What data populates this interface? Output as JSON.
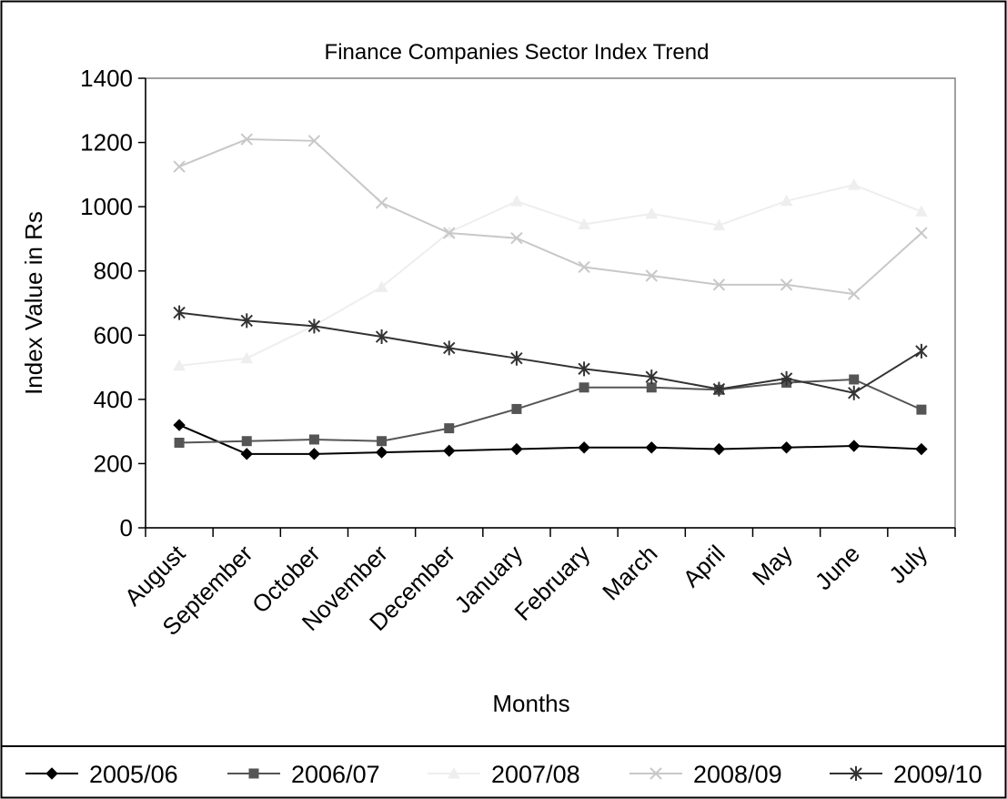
{
  "chart_data": {
    "type": "line",
    "title": "Finance Companies  Sector Index Trend",
    "xlabel": "Months",
    "ylabel": "Index Value   in Rs",
    "ylim": [
      0,
      1400
    ],
    "yticks": [
      "0",
      "200",
      "400",
      "600",
      "800",
      "1000",
      "1200",
      "1400"
    ],
    "categories": [
      "August",
      "September",
      "October",
      "November",
      "December",
      "January",
      "February",
      "March",
      "April",
      "May",
      "June",
      "July"
    ],
    "grid": false,
    "legend": "bottom",
    "series": [
      {
        "name": "2005/06",
        "color": "#000000",
        "marker": "diamond",
        "values": [
          320,
          230,
          230,
          235,
          240,
          245,
          250,
          250,
          245,
          250,
          255,
          245
        ]
      },
      {
        "name": "2006/07",
        "color": "#555555",
        "marker": "square",
        "values": [
          265,
          270,
          275,
          270,
          310,
          370,
          437,
          437,
          430,
          452,
          462,
          368
        ]
      },
      {
        "name": "2007/08",
        "color": "#eeeeee",
        "marker": "triangle",
        "values": [
          505,
          528,
          630,
          750,
          920,
          1017,
          945,
          978,
          942,
          1018,
          1068,
          985
        ]
      },
      {
        "name": "2008/09",
        "color": "#c8c8c8",
        "marker": "x",
        "values": [
          1125,
          1210,
          1205,
          1012,
          918,
          902,
          812,
          785,
          757,
          757,
          728,
          918
        ]
      },
      {
        "name": "2009/10",
        "color": "#333333",
        "marker": "star",
        "values": [
          670,
          645,
          628,
          595,
          560,
          528,
          495,
          470,
          432,
          465,
          420,
          550
        ]
      }
    ]
  }
}
